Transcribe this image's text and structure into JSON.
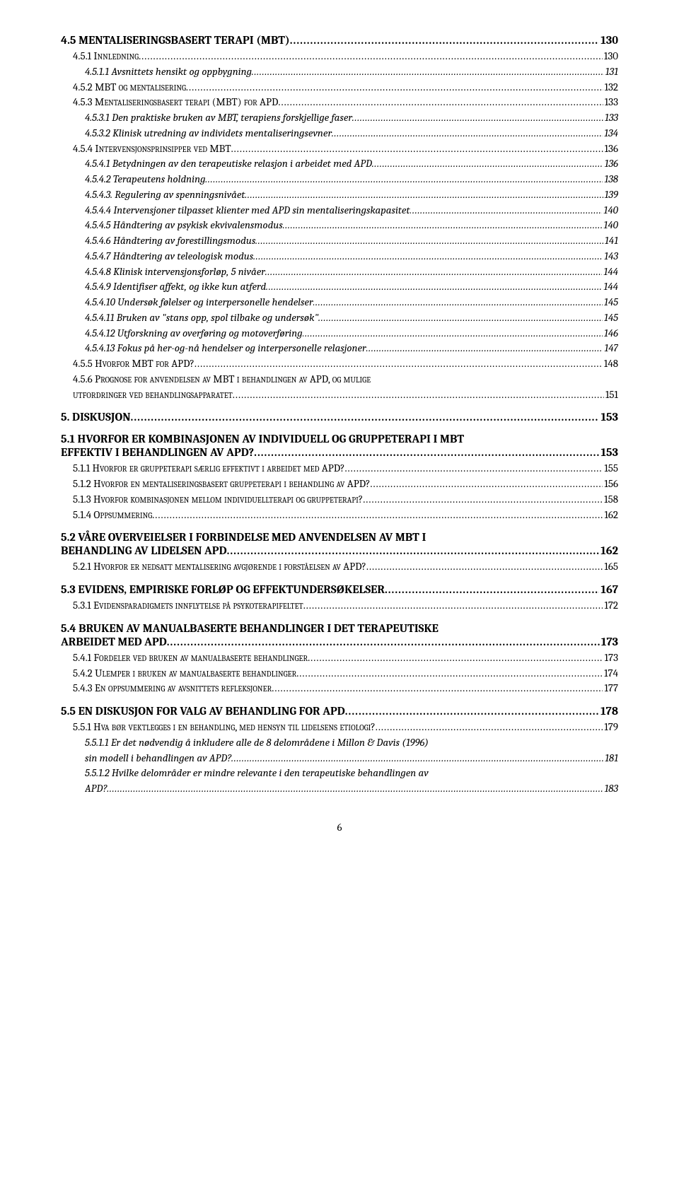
{
  "entries": [
    {
      "level": "h2",
      "label": "4.5 MENTALISERINGSBASERT TERAPI (MBT)",
      "page": "130",
      "nmt": true
    },
    {
      "level": "h3",
      "label": "4.5.1 Innledning",
      "page": "130"
    },
    {
      "level": "h4",
      "label": "4.5.1.1 Avsnittets hensikt og oppbygning",
      "page": "131"
    },
    {
      "level": "h3",
      "label": "4.5.2 MBT og mentalisering",
      "page": "132"
    },
    {
      "level": "h3",
      "label": "4.5.3 Mentaliseringsbasert terapi (MBT) for APD",
      "page": "133"
    },
    {
      "level": "h4",
      "label": "4.5.3.1 Den praktiske bruken av MBT, terapiens forskjellige faser",
      "page": "133"
    },
    {
      "level": "h4",
      "label": "4.5.3.2 Klinisk utredning av individets mentaliseringsevner",
      "page": "134"
    },
    {
      "level": "h3",
      "label": "4.5.4 Intervensjonsprinsipper ved MBT",
      "page": "136"
    },
    {
      "level": "h4",
      "label": "4.5.4.1 Betydningen av den terapeutiske relasjon i arbeidet med APD",
      "page": "136"
    },
    {
      "level": "h4",
      "label": "4.5.4.2 Terapeutens holdning",
      "page": "138"
    },
    {
      "level": "h4",
      "label": "4.5.4.3. Regulering av spenningsnivået",
      "page": "139"
    },
    {
      "level": "h4",
      "label": "4.5.4.4 Intervensjoner tilpasset klienter med APD sin mentaliseringskapasitet",
      "page": "140"
    },
    {
      "level": "h4",
      "label": "4.5.4.5 Håndtering av psykisk ekvivalensmodus",
      "page": "140"
    },
    {
      "level": "h4",
      "label": "4.5.4.6 Håndtering av forestillingsmodus",
      "page": "141"
    },
    {
      "level": "h4",
      "label": "4.5.4.7 Håndtering av teleologisk modus",
      "page": "143"
    },
    {
      "level": "h4",
      "label": "4.5.4.8 Klinisk intervensjonsforløp, 5 nivåer",
      "page": "144"
    },
    {
      "level": "h4",
      "label": "4.5.4.9 Identifiser affekt, og ikke kun atferd",
      "page": "144"
    },
    {
      "level": "h4",
      "label": "4.5.4.10 Undersøk følelser og interpersonelle hendelser",
      "page": "145"
    },
    {
      "level": "h4",
      "label": "4.5.4.11 Bruken av \"stans opp, spol tilbake og undersøk\"",
      "page": "145"
    },
    {
      "level": "h4",
      "label": "4.5.4.12 Utforskning av overføring og motoverføring",
      "page": "146"
    },
    {
      "level": "h4",
      "label": "4.5.4.13 Fokus på her-og-nå hendelser og interpersonelle relasjoner",
      "page": "147"
    },
    {
      "level": "h3",
      "label": "4.5.5 Hvorfor MBT for APD?",
      "page": "148"
    },
    {
      "level": "h3-multi",
      "line1": "4.5.6 Prognose for anvendelsen av MBT i behandlingen av APD, og mulige",
      "line2": "utfordringer ved behandlingsapparatet",
      "page": "151"
    },
    {
      "level": "h1",
      "label": "5. DISKUSJON",
      "page": "153"
    },
    {
      "level": "h2-multi",
      "line1": "5.1 HVORFOR ER KOMBINASJONEN AV INDIVIDUELL OG GRUPPETERAPI I MBT",
      "line2": "EFFEKTIV I BEHANDLINGEN AV APD?",
      "page": "153"
    },
    {
      "level": "h3",
      "label": "5.1.1 Hvorfor er gruppeterapi særlig effektivt i arbeidet med APD?",
      "page": "155"
    },
    {
      "level": "h3",
      "label": "5.1.2 Hvorfor en mentaliseringsbasert gruppeterapi i behandling av APD?",
      "page": "156"
    },
    {
      "level": "h3",
      "label": "5.1.3 Hvorfor kombinasjonen mellom individuellterapi og gruppeterapi?",
      "page": "158"
    },
    {
      "level": "h3",
      "label": "5.1.4 Oppsummering",
      "page": "162"
    },
    {
      "level": "h2-multi",
      "line1": "5.2 VÅRE OVERVEIELSER I FORBINDELSE MED ANVENDELSEN AV MBT I",
      "line2": "BEHANDLING AV LIDELSEN APD",
      "page": "162"
    },
    {
      "level": "h3",
      "label": "5.2.1 Hvorfor er nedsatt mentalisering avgjørende i forståelsen av APD?",
      "page": "165"
    },
    {
      "level": "h2",
      "label": "5.3 EVIDENS, EMPIRISKE FORLØP OG EFFEKTUNDERSØKELSER",
      "page": "167"
    },
    {
      "level": "h3",
      "label": "5.3.1 Evidensparadigmets innflytelse på psykoterapifeltet",
      "page": "172"
    },
    {
      "level": "h2-multi",
      "line1": "5.4 BRUKEN AV MANUALBASERTE BEHANDLINGER I DET TERAPEUTISKE",
      "line2": "ARBEIDET MED APD",
      "page": "173"
    },
    {
      "level": "h3",
      "label": "5.4.1 Fordeler ved bruken av manualbaserte behandlinger",
      "page": "173"
    },
    {
      "level": "h3",
      "label": "5.4.2 Ulemper i bruken av manualbaserte behandlinger",
      "page": "174"
    },
    {
      "level": "h3",
      "label": "5.4.3 En oppsummering av avsnittets refleksjoner",
      "page": "177"
    },
    {
      "level": "h2",
      "label": "5.5 EN DISKUSJON FOR VALG AV BEHANDLING FOR APD",
      "page": "178"
    },
    {
      "level": "h3",
      "label": "5.5.1 Hva bør vektlegges i en behandling, med hensyn til lidelsens etiologi?",
      "page": "179"
    },
    {
      "level": "h4-multi",
      "line1": "5.5.1.1 Er det nødvendig å inkludere alle de 8 delområdene i Millon & Davis (1996)",
      "line2": "sin modell i behandlingen av APD?",
      "page": "181"
    },
    {
      "level": "h4-multi",
      "line1": "5.5.1.2 Hvilke delområder er mindre relevante i den terapeutiske behandlingen av",
      "line2": "APD?",
      "page": "183"
    }
  ],
  "pageNumber": "6"
}
